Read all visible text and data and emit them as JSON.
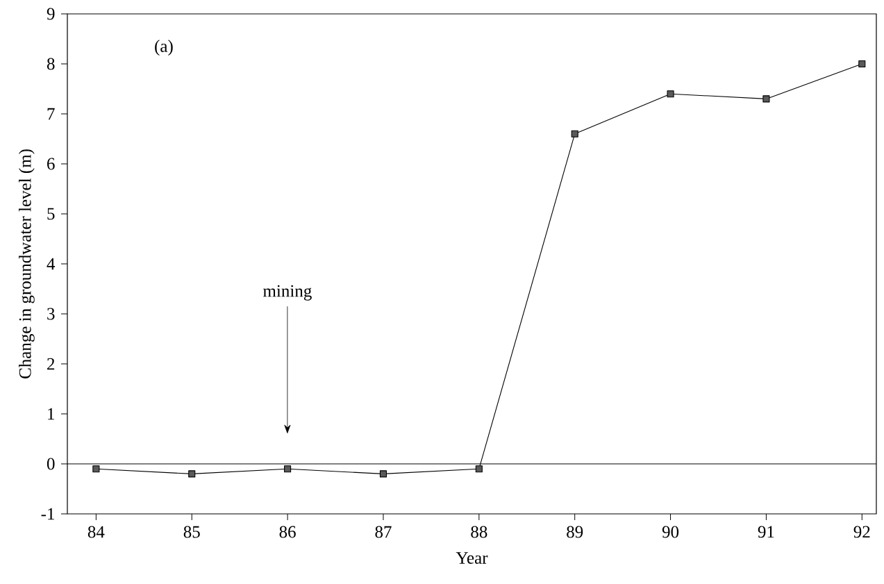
{
  "chart_data": {
    "type": "line",
    "xlabel": "Year",
    "ylabel": "Change in groundwater level (m)",
    "x": [
      84,
      85,
      86,
      87,
      88,
      89,
      90,
      91,
      92
    ],
    "series": [
      {
        "color": "#000000",
        "values": [
          -0.1,
          -0.2,
          -0.1,
          -0.2,
          -0.1,
          6.6,
          7.4,
          7.3,
          8.0
        ]
      }
    ],
    "xlim": [
      83.7,
      92.15
    ],
    "ylim": [
      -1,
      9
    ],
    "xticks": [
      {
        "value": 84,
        "label": "84"
      },
      {
        "value": 85,
        "label": "85"
      },
      {
        "value": 86,
        "label": "86"
      },
      {
        "value": 87,
        "label": "87"
      },
      {
        "value": 88,
        "label": "88"
      },
      {
        "value": 89,
        "label": "89"
      },
      {
        "value": 90,
        "label": "90"
      },
      {
        "value": 91,
        "label": "91"
      },
      {
        "value": 92,
        "label": "92"
      }
    ],
    "yticks": [
      -1,
      0,
      1,
      2,
      3,
      4,
      5,
      6,
      7,
      8,
      9
    ],
    "ref_lines": [
      {
        "axis": "y",
        "value": 0
      }
    ],
    "annotations": [
      "(a)",
      "mining"
    ],
    "marker": "square",
    "line_style": "solid"
  }
}
